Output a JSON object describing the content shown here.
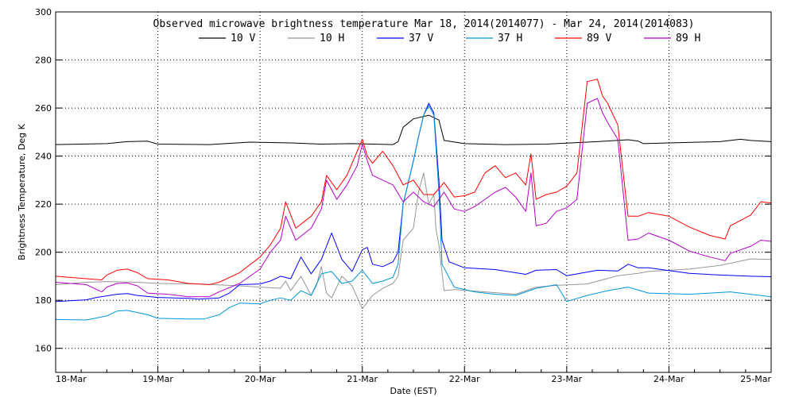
{
  "chart_data": {
    "type": "line",
    "title": "Observed microwave brightness temperature Mar 18, 2014(2014077) - Mar 24, 2014(2014083)",
    "xlabel": "Date (EST)",
    "ylabel": "Brightness Temperature, Deg K",
    "xlim": [
      0,
      7
    ],
    "ylim": [
      150,
      300
    ],
    "yticks": [
      150,
      160,
      180,
      200,
      220,
      240,
      260,
      280,
      300
    ],
    "ytick_labels": [
      "",
      "160",
      "180",
      "200",
      "220",
      "240",
      "260",
      "280",
      "300"
    ],
    "xtick_labels": [
      "18-Mar",
      "19-Mar",
      "20-Mar",
      "21-Mar",
      "22-Mar",
      "23-Mar",
      "24-Mar",
      "25-Mar"
    ],
    "grid": true,
    "legend": "top-center",
    "series": [
      {
        "name": "10 V",
        "color": "#000000",
        "points": [
          [
            0.0,
            244.8
          ],
          [
            0.5,
            245.2
          ],
          [
            0.7,
            246.0
          ],
          [
            0.9,
            246.2
          ],
          [
            1.0,
            245.0
          ],
          [
            1.5,
            244.8
          ],
          [
            1.9,
            245.8
          ],
          [
            2.3,
            245.5
          ],
          [
            2.6,
            245.0
          ],
          [
            2.9,
            245.2
          ],
          [
            3.3,
            244.8
          ],
          [
            3.35,
            246.0
          ],
          [
            3.4,
            252
          ],
          [
            3.5,
            255.5
          ],
          [
            3.65,
            257
          ],
          [
            3.75,
            255
          ],
          [
            3.8,
            246.5
          ],
          [
            4.0,
            245.2
          ],
          [
            4.4,
            244.8
          ],
          [
            4.8,
            245.0
          ],
          [
            5.3,
            246.0
          ],
          [
            5.6,
            246.8
          ],
          [
            5.7,
            246.2
          ],
          [
            5.75,
            245.2
          ],
          [
            6.0,
            245.5
          ],
          [
            6.5,
            246.0
          ],
          [
            6.7,
            247.0
          ],
          [
            6.8,
            246.5
          ],
          [
            7.0,
            246.0
          ]
        ]
      },
      {
        "name": "10 H",
        "color": "#969696",
        "points": [
          [
            0.0,
            186.5
          ],
          [
            0.3,
            187.5
          ],
          [
            0.5,
            187.8
          ],
          [
            0.8,
            187.5
          ],
          [
            1.0,
            187.0
          ],
          [
            1.4,
            186.8
          ],
          [
            1.8,
            186.0
          ],
          [
            2.2,
            185.0
          ],
          [
            2.25,
            188
          ],
          [
            2.3,
            184
          ],
          [
            2.4,
            190
          ],
          [
            2.5,
            182
          ],
          [
            2.55,
            186
          ],
          [
            2.6,
            194
          ],
          [
            2.65,
            183
          ],
          [
            2.7,
            181
          ],
          [
            2.8,
            190
          ],
          [
            2.9,
            186
          ],
          [
            3.0,
            176.5
          ],
          [
            3.1,
            182
          ],
          [
            3.2,
            185.0
          ],
          [
            3.3,
            187.0
          ],
          [
            3.35,
            190
          ],
          [
            3.4,
            205
          ],
          [
            3.5,
            210
          ],
          [
            3.55,
            225
          ],
          [
            3.6,
            233
          ],
          [
            3.65,
            220
          ],
          [
            3.7,
            224
          ],
          [
            3.72,
            210
          ],
          [
            3.75,
            203
          ],
          [
            3.8,
            184
          ],
          [
            3.9,
            184.5
          ],
          [
            4.2,
            183.5
          ],
          [
            4.5,
            182.5
          ],
          [
            4.7,
            185.5
          ],
          [
            4.9,
            186.2
          ],
          [
            5.2,
            186.8
          ],
          [
            5.5,
            190.2
          ],
          [
            5.7,
            191.2
          ],
          [
            5.8,
            192.0
          ],
          [
            6.2,
            193.0
          ],
          [
            6.5,
            194.5
          ],
          [
            6.8,
            197.2
          ],
          [
            7.0,
            197.0
          ]
        ]
      },
      {
        "name": "37 V",
        "color": "#0000ff",
        "points": [
          [
            0.0,
            179.5
          ],
          [
            0.3,
            180.2
          ],
          [
            0.4,
            181.2
          ],
          [
            0.6,
            182.5
          ],
          [
            0.7,
            182.8
          ],
          [
            0.8,
            182.0
          ],
          [
            1.0,
            181.2
          ],
          [
            1.3,
            180.8
          ],
          [
            1.4,
            180.5
          ],
          [
            1.6,
            181.0
          ],
          [
            1.7,
            183.0
          ],
          [
            1.8,
            186.5
          ],
          [
            2.0,
            186.8
          ],
          [
            2.1,
            188
          ],
          [
            2.2,
            190
          ],
          [
            2.3,
            189
          ],
          [
            2.4,
            198
          ],
          [
            2.5,
            191
          ],
          [
            2.6,
            197
          ],
          [
            2.7,
            208
          ],
          [
            2.8,
            197
          ],
          [
            2.9,
            192
          ],
          [
            3.0,
            201
          ],
          [
            3.05,
            202
          ],
          [
            3.1,
            195
          ],
          [
            3.2,
            194.0
          ],
          [
            3.3,
            196.0
          ],
          [
            3.35,
            200
          ],
          [
            3.4,
            220
          ],
          [
            3.5,
            238
          ],
          [
            3.55,
            248
          ],
          [
            3.6,
            257
          ],
          [
            3.65,
            262
          ],
          [
            3.7,
            258
          ],
          [
            3.75,
            230
          ],
          [
            3.78,
            205
          ],
          [
            3.85,
            196
          ],
          [
            4.0,
            193.5
          ],
          [
            4.3,
            192.8
          ],
          [
            4.6,
            190.8
          ],
          [
            4.7,
            192.5
          ],
          [
            4.9,
            192.8
          ],
          [
            5.0,
            190.2
          ],
          [
            5.3,
            192.5
          ],
          [
            5.5,
            192.2
          ],
          [
            5.6,
            195.0
          ],
          [
            5.7,
            193.5
          ],
          [
            5.8,
            193.5
          ],
          [
            6.2,
            191.2
          ],
          [
            6.5,
            190.5
          ],
          [
            6.8,
            190.0
          ],
          [
            7.0,
            189.8
          ]
        ]
      },
      {
        "name": "37 H",
        "color": "#0096dc",
        "points": [
          [
            0.0,
            172.0
          ],
          [
            0.3,
            171.8
          ],
          [
            0.5,
            173.5
          ],
          [
            0.6,
            175.5
          ],
          [
            0.7,
            175.8
          ],
          [
            0.9,
            174.0
          ],
          [
            1.0,
            172.5
          ],
          [
            1.3,
            172.2
          ],
          [
            1.45,
            172.2
          ],
          [
            1.6,
            174.0
          ],
          [
            1.7,
            177.0
          ],
          [
            1.8,
            178.8
          ],
          [
            2.0,
            178.5
          ],
          [
            2.1,
            180
          ],
          [
            2.2,
            181
          ],
          [
            2.3,
            180
          ],
          [
            2.4,
            184
          ],
          [
            2.5,
            182
          ],
          [
            2.6,
            191
          ],
          [
            2.7,
            192
          ],
          [
            2.8,
            187
          ],
          [
            2.9,
            188
          ],
          [
            3.0,
            192.5
          ],
          [
            3.1,
            187
          ],
          [
            3.2,
            188.0
          ],
          [
            3.3,
            189.5
          ],
          [
            3.35,
            195
          ],
          [
            3.4,
            220
          ],
          [
            3.5,
            238
          ],
          [
            3.55,
            248
          ],
          [
            3.6,
            257
          ],
          [
            3.65,
            261
          ],
          [
            3.7,
            257
          ],
          [
            3.75,
            225
          ],
          [
            3.78,
            195
          ],
          [
            3.9,
            185.5
          ],
          [
            4.1,
            183.5
          ],
          [
            4.3,
            182.5
          ],
          [
            4.5,
            182.0
          ],
          [
            4.7,
            185.0
          ],
          [
            4.9,
            186.5
          ],
          [
            5.0,
            179.5
          ],
          [
            5.2,
            182.0
          ],
          [
            5.4,
            184.0
          ],
          [
            5.6,
            185.5
          ],
          [
            5.8,
            183.0
          ],
          [
            6.2,
            182.5
          ],
          [
            6.6,
            183.5
          ],
          [
            7.0,
            181.5
          ]
        ]
      },
      {
        "name": "89 V",
        "color": "#ff0000",
        "points": [
          [
            0.0,
            190.0
          ],
          [
            0.3,
            189.0
          ],
          [
            0.45,
            188.5
          ],
          [
            0.5,
            190.5
          ],
          [
            0.6,
            192.5
          ],
          [
            0.7,
            193.0
          ],
          [
            0.8,
            191.5
          ],
          [
            0.9,
            189.0
          ],
          [
            1.1,
            188.5
          ],
          [
            1.3,
            187.0
          ],
          [
            1.5,
            186.5
          ],
          [
            1.6,
            187.5
          ],
          [
            1.8,
            191.5
          ],
          [
            2.0,
            198.0
          ],
          [
            2.1,
            203
          ],
          [
            2.2,
            210
          ],
          [
            2.25,
            221
          ],
          [
            2.35,
            210
          ],
          [
            2.5,
            215
          ],
          [
            2.6,
            221
          ],
          [
            2.65,
            232
          ],
          [
            2.75,
            226
          ],
          [
            2.85,
            232
          ],
          [
            2.95,
            242
          ],
          [
            3.0,
            247
          ],
          [
            3.05,
            240
          ],
          [
            3.1,
            237
          ],
          [
            3.2,
            242
          ],
          [
            3.3,
            236
          ],
          [
            3.4,
            228
          ],
          [
            3.5,
            230
          ],
          [
            3.6,
            224
          ],
          [
            3.7,
            224
          ],
          [
            3.8,
            229
          ],
          [
            3.9,
            223
          ],
          [
            4.0,
            223.5
          ],
          [
            4.1,
            225
          ],
          [
            4.2,
            233
          ],
          [
            4.3,
            236
          ],
          [
            4.4,
            231
          ],
          [
            4.5,
            233
          ],
          [
            4.6,
            228
          ],
          [
            4.65,
            241
          ],
          [
            4.7,
            222
          ],
          [
            4.8,
            224
          ],
          [
            4.9,
            225
          ],
          [
            5.0,
            227.5
          ],
          [
            5.1,
            233
          ],
          [
            5.2,
            271
          ],
          [
            5.3,
            272
          ],
          [
            5.35,
            265
          ],
          [
            5.4,
            262
          ],
          [
            5.5,
            253
          ],
          [
            5.6,
            215
          ],
          [
            5.7,
            215.0
          ],
          [
            5.8,
            216.5
          ],
          [
            6.0,
            215.0
          ],
          [
            6.2,
            210.5
          ],
          [
            6.4,
            207.0
          ],
          [
            6.55,
            205.5
          ],
          [
            6.6,
            211.0
          ],
          [
            6.8,
            215.5
          ],
          [
            6.9,
            221.0
          ],
          [
            7.0,
            220.5
          ]
        ]
      },
      {
        "name": "89 H",
        "color": "#b400c8",
        "points": [
          [
            0.0,
            187.5
          ],
          [
            0.3,
            186.5
          ],
          [
            0.45,
            183.5
          ],
          [
            0.5,
            185.5
          ],
          [
            0.6,
            187.0
          ],
          [
            0.7,
            187.2
          ],
          [
            0.8,
            186.0
          ],
          [
            0.9,
            183.0
          ],
          [
            1.1,
            182.5
          ],
          [
            1.3,
            181.5
          ],
          [
            1.5,
            181.5
          ],
          [
            1.6,
            183.5
          ],
          [
            1.8,
            187.0
          ],
          [
            2.0,
            193.0
          ],
          [
            2.1,
            200
          ],
          [
            2.2,
            205
          ],
          [
            2.25,
            215
          ],
          [
            2.35,
            205
          ],
          [
            2.5,
            210
          ],
          [
            2.6,
            218
          ],
          [
            2.65,
            230
          ],
          [
            2.75,
            222
          ],
          [
            2.85,
            228
          ],
          [
            2.95,
            236
          ],
          [
            3.0,
            245
          ],
          [
            3.05,
            238
          ],
          [
            3.1,
            232
          ],
          [
            3.2,
            230
          ],
          [
            3.3,
            228
          ],
          [
            3.4,
            221
          ],
          [
            3.5,
            225
          ],
          [
            3.6,
            221
          ],
          [
            3.7,
            219
          ],
          [
            3.8,
            225
          ],
          [
            3.9,
            218
          ],
          [
            4.0,
            217.0
          ],
          [
            4.1,
            219
          ],
          [
            4.2,
            222
          ],
          [
            4.3,
            225
          ],
          [
            4.4,
            227
          ],
          [
            4.5,
            223
          ],
          [
            4.6,
            217
          ],
          [
            4.65,
            233
          ],
          [
            4.7,
            211
          ],
          [
            4.8,
            212
          ],
          [
            4.9,
            217
          ],
          [
            5.0,
            218.5
          ],
          [
            5.1,
            222
          ],
          [
            5.2,
            262
          ],
          [
            5.3,
            264
          ],
          [
            5.35,
            258
          ],
          [
            5.4,
            254
          ],
          [
            5.5,
            247
          ],
          [
            5.6,
            205
          ],
          [
            5.7,
            205.5
          ],
          [
            5.8,
            208.0
          ],
          [
            6.0,
            205.0
          ],
          [
            6.2,
            200.5
          ],
          [
            6.4,
            198.0
          ],
          [
            6.55,
            196.5
          ],
          [
            6.6,
            199.5
          ],
          [
            6.8,
            202.5
          ],
          [
            6.9,
            205.0
          ],
          [
            7.0,
            204.5
          ]
        ]
      }
    ]
  }
}
